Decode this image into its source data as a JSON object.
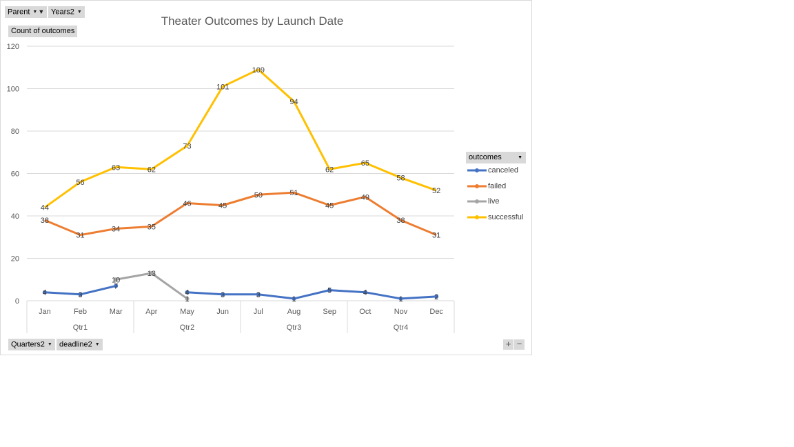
{
  "filters": {
    "parent_label": "Parent",
    "years_label": "Years2",
    "value_label": "Count of outcomes",
    "quarters_label": "Quarters2",
    "deadline_label": "deadline2"
  },
  "legend": {
    "title": "outcomes",
    "items": [
      "canceled",
      "failed",
      "live",
      "successful"
    ]
  },
  "controls": {
    "expand": "+",
    "collapse": "−"
  },
  "colors": {
    "canceled": "#4472c4",
    "failed": "#ed7d31",
    "live": "#a5a5a5",
    "successful": "#ffc000"
  },
  "chart_data": {
    "type": "line",
    "title": "Theater Outcomes by Launch Date",
    "categories": [
      "Jan",
      "Feb",
      "Mar",
      "Apr",
      "May",
      "Jun",
      "Jul",
      "Aug",
      "Sep",
      "Oct",
      "Nov",
      "Dec"
    ],
    "groups": [
      {
        "label": "Qtr1",
        "count": 3
      },
      {
        "label": "Qtr2",
        "count": 3
      },
      {
        "label": "Qtr3",
        "count": 3
      },
      {
        "label": "Qtr4",
        "count": 3
      }
    ],
    "ylim": [
      0,
      120
    ],
    "yticks": [
      0,
      20,
      40,
      60,
      80,
      100,
      120
    ],
    "grid": true,
    "legend_position": "right",
    "series": [
      {
        "name": "canceled",
        "values": [
          4,
          3,
          7,
          null,
          4,
          3,
          3,
          1,
          5,
          4,
          1,
          2
        ]
      },
      {
        "name": "failed",
        "values": [
          38,
          31,
          34,
          35,
          46,
          45,
          50,
          51,
          45,
          49,
          38,
          31
        ]
      },
      {
        "name": "live",
        "values": [
          null,
          null,
          10,
          13,
          1,
          null,
          null,
          null,
          null,
          null,
          null,
          null
        ]
      },
      {
        "name": "successful",
        "values": [
          44,
          56,
          63,
          62,
          73,
          101,
          109,
          94,
          62,
          65,
          58,
          52
        ]
      }
    ]
  }
}
